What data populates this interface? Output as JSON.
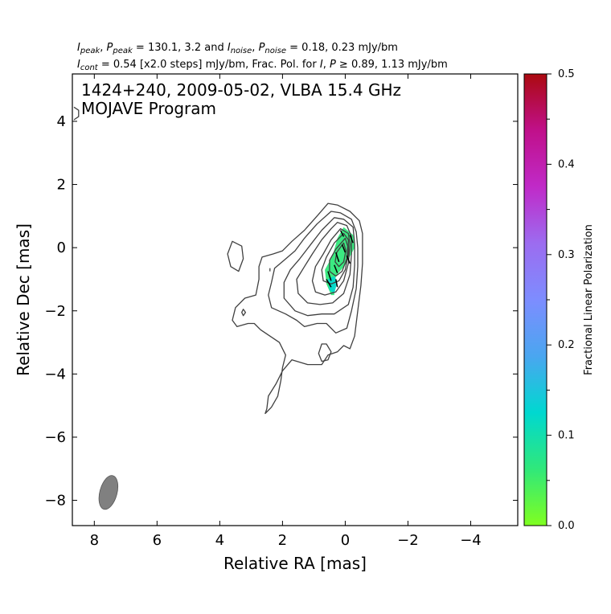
{
  "chart_data": {
    "type": "contour",
    "header": {
      "line1": [
        {
          "t": "I",
          "it": true
        },
        {
          "t": "peak",
          "sub": true,
          "it": true
        },
        {
          "t": ", "
        },
        {
          "t": "P",
          "it": true
        },
        {
          "t": "peak",
          "sub": true,
          "it": true
        },
        {
          "t": " = 130.1, 3.2 and "
        },
        {
          "t": "I",
          "it": true
        },
        {
          "t": "noise",
          "sub": true,
          "it": true
        },
        {
          "t": ", "
        },
        {
          "t": "P",
          "it": true
        },
        {
          "t": "noise",
          "sub": true,
          "it": true
        },
        {
          "t": " = 0.18, 0.23 mJy/bm"
        }
      ],
      "line2": [
        {
          "t": "I",
          "it": true
        },
        {
          "t": "cont",
          "sub": true,
          "it": true
        },
        {
          "t": " = 0.54 [x2.0 steps] mJy/bm, Frac. Pol. for "
        },
        {
          "t": "I",
          "it": true
        },
        {
          "t": ", "
        },
        {
          "t": "P",
          "it": true
        },
        {
          "t": " ≥ 0.89, 1.13 mJy/bm"
        }
      ]
    },
    "title_line1": "1424+240, 2009-05-02, VLBA 15.4 GHz",
    "title_line2": "MOJAVE Program",
    "xlabel": "Relative RA [mas]",
    "ylabel": "Relative Dec [mas]",
    "xlim": [
      8.7,
      -5.5
    ],
    "ylim": [
      -8.8,
      5.5
    ],
    "xticks": [
      8,
      6,
      4,
      2,
      0,
      -2,
      -4
    ],
    "yticks": [
      4,
      2,
      0,
      -2,
      -4,
      -6,
      -8
    ],
    "colorbar": {
      "label": "Fractional Linear Polarization",
      "range": [
        0,
        0.5
      ],
      "ticks": [
        0.0,
        0.1,
        0.2,
        0.3,
        0.4,
        0.5
      ],
      "tick_labels": [
        "0.0",
        "0.1",
        "0.2",
        "0.3",
        "0.4",
        "0.5"
      ],
      "colors": [
        "#80ff20",
        "#30e87a",
        "#00d8d0",
        "#4aa6f0",
        "#7d8dff",
        "#9c6cf0",
        "#c02ac8",
        "#c0108a",
        "#ab0a10"
      ]
    },
    "contour_levels_mJy": [
      0.54,
      1.08,
      2.16,
      4.32,
      8.64,
      17.28,
      34.56,
      69.12
    ],
    "contours": [
      [
        [
          0.55,
          1.4
        ],
        [
          0.25,
          1.35
        ],
        [
          -0.15,
          1.15
        ],
        [
          -0.45,
          0.85
        ],
        [
          -0.55,
          0.45
        ],
        [
          -0.55,
          -0.1
        ],
        [
          -0.55,
          -0.5
        ],
        [
          -0.5,
          -1.2
        ],
        [
          -0.4,
          -2
        ],
        [
          -0.3,
          -2.8
        ],
        [
          -0.15,
          -3.2
        ],
        [
          0.05,
          -3.1
        ],
        [
          0.25,
          -3.3
        ],
        [
          0.55,
          -3.4
        ],
        [
          0.75,
          -3.7
        ],
        [
          1.2,
          -3.7
        ],
        [
          1.7,
          -3.55
        ],
        [
          2.0,
          -3.9
        ],
        [
          2.2,
          -4.3
        ],
        [
          2.45,
          -4.7
        ],
        [
          2.5,
          -5.1
        ],
        [
          2.55,
          -5.25
        ],
        [
          2.35,
          -5.05
        ],
        [
          2.15,
          -4.7
        ],
        [
          2.05,
          -4.2
        ],
        [
          2.0,
          -3.8
        ],
        [
          1.9,
          -3.4
        ],
        [
          2.1,
          -3.0
        ],
        [
          2.4,
          -2.8
        ],
        [
          2.7,
          -2.6
        ],
        [
          2.9,
          -2.4
        ],
        [
          3.1,
          -2.4
        ],
        [
          3.45,
          -2.5
        ],
        [
          3.6,
          -2.3
        ],
        [
          3.5,
          -1.9
        ],
        [
          3.2,
          -1.6
        ],
        [
          2.85,
          -1.5
        ],
        [
          2.75,
          -1.0
        ],
        [
          2.75,
          -0.6
        ],
        [
          2.65,
          -0.3
        ],
        [
          2.3,
          -0.2
        ],
        [
          2.0,
          -0.1
        ],
        [
          1.7,
          0.2
        ],
        [
          1.3,
          0.55
        ],
        [
          0.9,
          1.0
        ],
        [
          0.55,
          1.4
        ]
      ],
      [
        [
          0.45,
          1.15
        ],
        [
          0.15,
          1.1
        ],
        [
          -0.2,
          0.9
        ],
        [
          -0.35,
          0.5
        ],
        [
          -0.4,
          0.0
        ],
        [
          -0.4,
          -0.6
        ],
        [
          -0.35,
          -1.3
        ],
        [
          -0.2,
          -2
        ],
        [
          -0.05,
          -2.55
        ],
        [
          0.3,
          -2.7
        ],
        [
          0.6,
          -2.4
        ],
        [
          0.9,
          -2.4
        ],
        [
          1.3,
          -2.5
        ],
        [
          1.55,
          -2.3
        ],
        [
          1.9,
          -2.1
        ],
        [
          2.35,
          -1.9
        ],
        [
          2.45,
          -1.5
        ],
        [
          2.35,
          -1.1
        ],
        [
          2.25,
          -0.65
        ],
        [
          1.95,
          -0.4
        ],
        [
          1.6,
          -0.1
        ],
        [
          1.3,
          0.3
        ],
        [
          0.9,
          0.75
        ],
        [
          0.45,
          1.15
        ]
      ],
      [
        [
          0.35,
          0.95
        ],
        [
          0.05,
          0.9
        ],
        [
          -0.25,
          0.65
        ],
        [
          -0.3,
          0.1
        ],
        [
          -0.3,
          -0.55
        ],
        [
          -0.25,
          -1.25
        ],
        [
          -0.1,
          -1.8
        ],
        [
          0.35,
          -2.1
        ],
        [
          0.75,
          -2.1
        ],
        [
          1.2,
          -2.15
        ],
        [
          1.6,
          -2.0
        ],
        [
          1.95,
          -1.6
        ],
        [
          1.95,
          -1.1
        ],
        [
          1.75,
          -0.7
        ],
        [
          1.45,
          -0.35
        ],
        [
          1.1,
          0.1
        ],
        [
          0.75,
          0.55
        ],
        [
          0.35,
          0.95
        ]
      ],
      [
        [
          0.25,
          0.8
        ],
        [
          -0.05,
          0.7
        ],
        [
          -0.2,
          0.35
        ],
        [
          -0.2,
          -0.2
        ],
        [
          -0.15,
          -0.85
        ],
        [
          0.05,
          -1.45
        ],
        [
          0.4,
          -1.75
        ],
        [
          0.8,
          -1.8
        ],
        [
          1.2,
          -1.75
        ],
        [
          1.5,
          -1.45
        ],
        [
          1.55,
          -1.0
        ],
        [
          1.3,
          -0.6
        ],
        [
          1.05,
          -0.2
        ],
        [
          0.75,
          0.25
        ],
        [
          0.45,
          0.6
        ],
        [
          0.25,
          0.8
        ]
      ],
      [
        [
          0.15,
          0.6
        ],
        [
          -0.1,
          0.45
        ],
        [
          -0.15,
          0.1
        ],
        [
          -0.1,
          -0.5
        ],
        [
          0.05,
          -1.05
        ],
        [
          0.3,
          -1.4
        ],
        [
          0.65,
          -1.5
        ],
        [
          0.95,
          -1.4
        ],
        [
          1.05,
          -1.05
        ],
        [
          0.95,
          -0.6
        ],
        [
          0.7,
          -0.2
        ],
        [
          0.45,
          0.25
        ],
        [
          0.15,
          0.6
        ]
      ],
      [
        [
          0.05,
          0.45
        ],
        [
          -0.1,
          0.25
        ],
        [
          -0.1,
          -0.2
        ],
        [
          0.0,
          -0.7
        ],
        [
          0.2,
          -1.05
        ],
        [
          0.45,
          -1.15
        ],
        [
          0.7,
          -1.05
        ],
        [
          0.75,
          -0.7
        ],
        [
          0.6,
          -0.3
        ],
        [
          0.35,
          0.15
        ],
        [
          0.05,
          0.45
        ]
      ],
      [
        [
          0.0,
          0.3
        ],
        [
          -0.08,
          0.05
        ],
        [
          -0.05,
          -0.35
        ],
        [
          0.1,
          -0.75
        ],
        [
          0.3,
          -0.9
        ],
        [
          0.5,
          -0.75
        ],
        [
          0.5,
          -0.4
        ],
        [
          0.3,
          -0.05
        ],
        [
          0.0,
          0.3
        ]
      ],
      [
        [
          0.05,
          0.15
        ],
        [
          -0.02,
          -0.1
        ],
        [
          0.05,
          -0.45
        ],
        [
          0.2,
          -0.6
        ],
        [
          0.32,
          -0.45
        ],
        [
          0.27,
          -0.15
        ],
        [
          0.05,
          0.15
        ]
      ],
      [
        [
          3.6,
          0.2
        ],
        [
          3.3,
          0.05
        ],
        [
          3.25,
          -0.35
        ],
        [
          3.4,
          -0.75
        ],
        [
          3.65,
          -0.6
        ],
        [
          3.75,
          -0.2
        ],
        [
          3.6,
          0.2
        ]
      ],
      [
        [
          0.6,
          -3.05
        ],
        [
          0.45,
          -3.3
        ],
        [
          0.55,
          -3.55
        ],
        [
          0.75,
          -3.6
        ],
        [
          0.85,
          -3.35
        ],
        [
          0.75,
          -3.05
        ],
        [
          0.6,
          -3.05
        ]
      ],
      [
        [
          3.25,
          -1.95
        ],
        [
          3.18,
          -2.05
        ],
        [
          3.25,
          -2.15
        ],
        [
          3.3,
          -2.05
        ],
        [
          3.25,
          -1.95
        ]
      ],
      [
        [
          8.65,
          4.05
        ],
        [
          8.5,
          4.15
        ],
        [
          8.5,
          4.35
        ],
        [
          8.65,
          4.45
        ]
      ]
    ],
    "pol_region": {
      "name": "fractional-polarization",
      "approx_fraction": 0.05,
      "outline": [
        [
          0.05,
          0.65
        ],
        [
          -0.25,
          0.4
        ],
        [
          -0.3,
          0.0
        ],
        [
          0.0,
          -0.55
        ],
        [
          0.3,
          -0.9
        ],
        [
          0.35,
          -1.5
        ],
        [
          0.45,
          -1.5
        ],
        [
          0.6,
          -1.15
        ],
        [
          0.65,
          -0.7
        ],
        [
          0.4,
          -0.25
        ],
        [
          0.25,
          0.3
        ],
        [
          0.05,
          0.65
        ]
      ]
    },
    "evpa_ticks": [
      [
        [
          0.15,
          0.55
        ],
        [
          0.05,
          0.35
        ]
      ],
      [
        [
          -0.15,
          0.4
        ],
        [
          -0.25,
          0.15
        ]
      ],
      [
        [
          0.1,
          0.1
        ],
        [
          0.0,
          -0.15
        ]
      ],
      [
        [
          0.3,
          -0.15
        ],
        [
          0.2,
          -0.45
        ]
      ],
      [
        [
          -0.05,
          -0.25
        ],
        [
          -0.15,
          -0.5
        ]
      ],
      [
        [
          0.35,
          -0.55
        ],
        [
          0.25,
          -0.8
        ]
      ],
      [
        [
          0.55,
          -0.75
        ],
        [
          0.45,
          -1.05
        ]
      ],
      [
        [
          0.6,
          -1.0
        ],
        [
          0.45,
          -1.25
        ]
      ],
      [
        [
          0.3,
          -1.0
        ],
        [
          0.25,
          -1.25
        ]
      ]
    ],
    "beam": {
      "x": 7.55,
      "y": -7.75,
      "major_mas": 1.1,
      "minor_mas": 0.55,
      "pa_deg": -15,
      "color": "#808080"
    },
    "colors": {
      "contour": "#404040",
      "evpa": "#000000",
      "frame": "#000000"
    }
  }
}
